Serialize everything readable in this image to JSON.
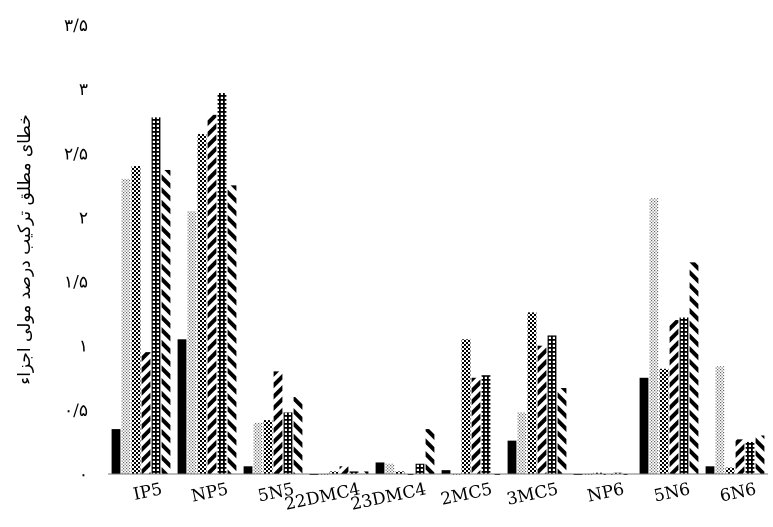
{
  "chart_data": {
    "type": "bar",
    "ylabel": "خطای مطلق ترکیب درصد مولی اجزاء",
    "ylim": [
      0,
      3.5
    ],
    "yticks": [
      {
        "value": 0,
        "label": "۰"
      },
      {
        "value": 0.5,
        "label": "۰/۵"
      },
      {
        "value": 1,
        "label": "۱"
      },
      {
        "value": 1.5,
        "label": "۱/۵"
      },
      {
        "value": 2,
        "label": "۲"
      },
      {
        "value": 2.5,
        "label": "۲/۵"
      },
      {
        "value": 3,
        "label": "۳"
      },
      {
        "value": 3.5,
        "label": "۳/۵"
      }
    ],
    "categories": [
      "IP5",
      "NP5",
      "5N5",
      "22DMC4",
      "23DMC4",
      "2MC5",
      "3MC5",
      "NP6",
      "5N6",
      "6N6"
    ],
    "grid": false,
    "legend": "none",
    "series": [
      {
        "pattern": "solid",
        "color": "#000000",
        "values": [
          0.35,
          1.05,
          0.06,
          0.0,
          0.09,
          0.03,
          0.26,
          0.0,
          0.75,
          0.06
        ]
      },
      {
        "pattern": "fine-dots",
        "color": "#555555",
        "values": [
          2.3,
          2.05,
          0.4,
          0.0,
          0.08,
          0.0,
          0.48,
          0.0,
          2.15,
          0.84
        ]
      },
      {
        "pattern": "checker",
        "color": "#000000",
        "values": [
          2.4,
          2.65,
          0.42,
          0.02,
          0.02,
          1.05,
          1.26,
          0.01,
          0.82,
          0.05
        ]
      },
      {
        "pattern": "diagonal-bold",
        "color": "#000000",
        "values": [
          0.95,
          2.8,
          0.8,
          0.06,
          0.0,
          0.75,
          1.0,
          0.0,
          1.2,
          0.27
        ]
      },
      {
        "pattern": "grid",
        "color": "#000000",
        "values": [
          2.78,
          2.97,
          0.48,
          0.02,
          0.08,
          0.77,
          1.08,
          0.01,
          1.22,
          0.25
        ]
      },
      {
        "pattern": "diagonal",
        "color": "#000000",
        "values": [
          2.37,
          2.25,
          0.6,
          0.02,
          0.35,
          0.0,
          0.67,
          0.0,
          1.65,
          0.3
        ]
      }
    ]
  }
}
